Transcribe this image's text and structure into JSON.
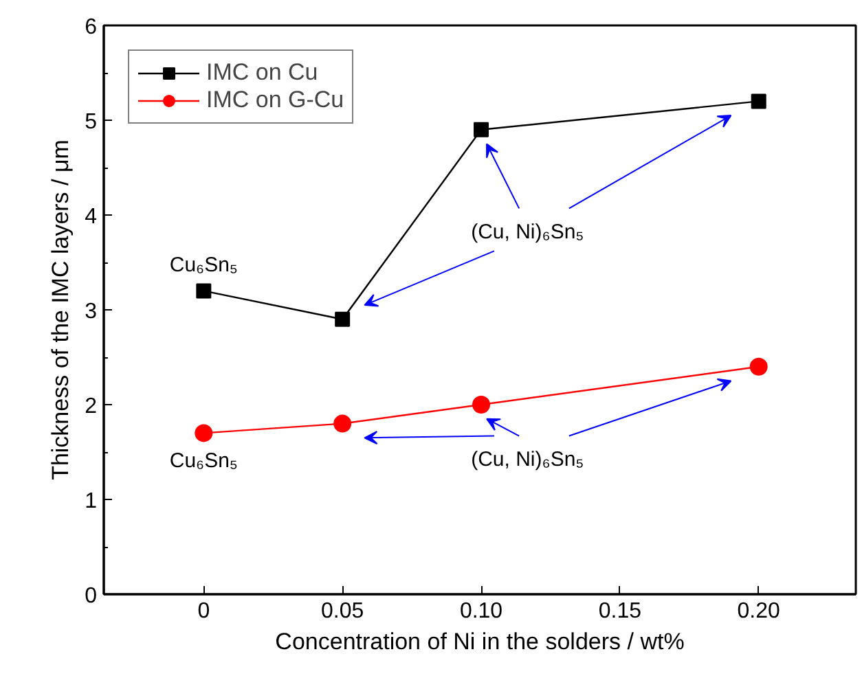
{
  "chart_data": {
    "type": "line",
    "xlabel": "Concentration of Ni in the solders / wt%",
    "ylabel": "Thickness of the IMC layers / μm",
    "x": [
      0,
      0.05,
      0.1,
      0.2
    ],
    "series": [
      {
        "name": "IMC on Cu",
        "color": "#000000",
        "marker": "square",
        "values": [
          3.2,
          2.9,
          4.9,
          5.2
        ]
      },
      {
        "name": "IMC on G-Cu",
        "color": "#ff0000",
        "marker": "circle",
        "values": [
          1.7,
          1.8,
          2.0,
          2.4
        ]
      }
    ],
    "xlim": [
      -0.036,
      0.235
    ],
    "ylim": [
      0,
      6
    ],
    "xticks": [
      0,
      0.05,
      {
        "value": 0.1,
        "label": "0.10"
      },
      0.15,
      {
        "value": 0.2,
        "label": "0.20"
      }
    ],
    "yticks": [
      0,
      1,
      2,
      3,
      4,
      5,
      6
    ],
    "annotations": [
      {
        "text": "Cu₆Sn₅",
        "x": 0,
        "y": 3.2
      },
      "(Cu, Ni)₆Sn₅",
      {
        "text": "Cu₆Sn₅",
        "x": 0,
        "y": 1.7
      },
      "(Cu, Ni)₆Sn₅"
    ],
    "grid": false,
    "legend": "top left",
    "line_style": "solid"
  }
}
